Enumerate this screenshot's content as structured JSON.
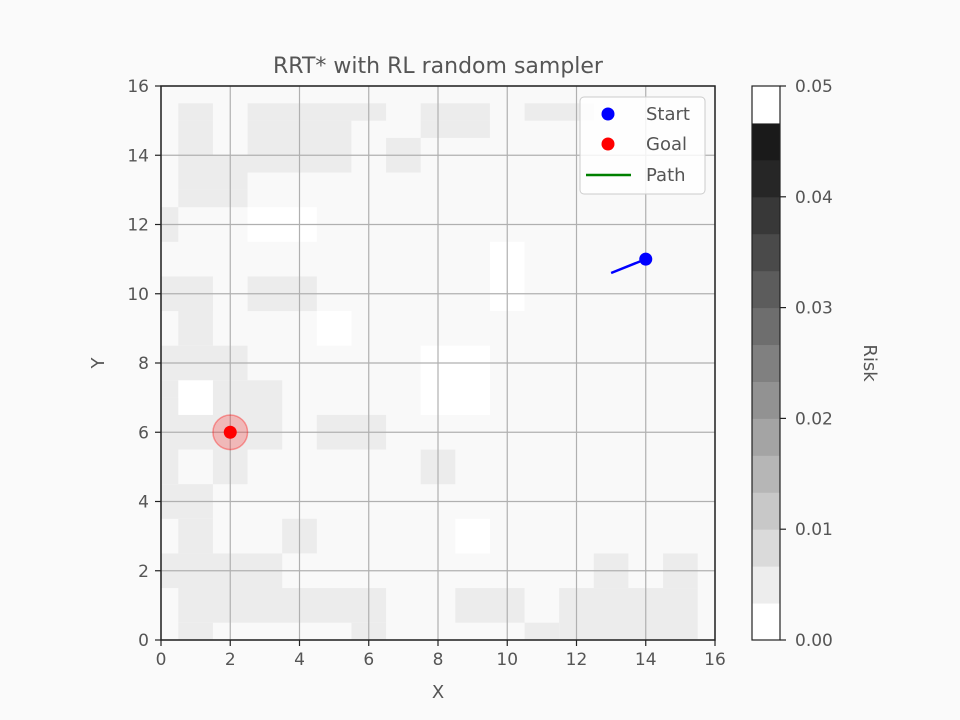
{
  "chart_data": {
    "type": "heatmap",
    "title": "RRT* with RL random sampler",
    "xlabel": "X",
    "ylabel": "Y",
    "xlim": [
      0,
      16
    ],
    "ylim": [
      0,
      16
    ],
    "xticks": [
      0,
      2,
      4,
      6,
      8,
      10,
      12,
      14,
      16
    ],
    "yticks": [
      0,
      2,
      4,
      6,
      8,
      10,
      12,
      14,
      16
    ],
    "xtick_labels": [
      "0",
      "2",
      "4",
      "6",
      "8",
      "10",
      "12",
      "14",
      "16"
    ],
    "ytick_labels": [
      "0",
      "2",
      "4",
      "6",
      "8",
      "10",
      "12",
      "14",
      "16"
    ],
    "grid": true,
    "grid_resolution": 0.5,
    "risk_map": {
      "description": "Risk value per 1x1 cell (cell lower-left corner) at low risk levels",
      "light_cells": [
        [
          0,
          0
        ],
        [
          1,
          0
        ],
        [
          2,
          0
        ],
        [
          3,
          0
        ],
        [
          4,
          0
        ],
        [
          8,
          0
        ],
        [
          9,
          0
        ],
        [
          10,
          0
        ],
        [
          11,
          0
        ],
        [
          12,
          0
        ],
        [
          13,
          0
        ],
        [
          14,
          0
        ],
        [
          15,
          0
        ]
      ]
    },
    "heat_cells": [
      {
        "x0": 0.5,
        "x1": 1.5,
        "y0": 15,
        "y1": 15.5
      },
      {
        "x0": 2.5,
        "x1": 6.5,
        "y0": 15,
        "y1": 15.5
      },
      {
        "x0": 7.5,
        "x1": 9.5,
        "y0": 15,
        "y1": 15.5
      },
      {
        "x0": 10.5,
        "x1": 12.5,
        "y0": 15,
        "y1": 15.5
      },
      {
        "x0": 0.5,
        "x1": 1.5,
        "y0": 14,
        "y1": 15
      },
      {
        "x0": 2.5,
        "x1": 5.5,
        "y0": 14,
        "y1": 15
      },
      {
        "x0": 7.5,
        "x1": 9.5,
        "y0": 14.5,
        "y1": 15
      },
      {
        "x0": 6.5,
        "x1": 7.5,
        "y0": 13.5,
        "y1": 14.5
      },
      {
        "x0": 0.5,
        "x1": 2.5,
        "y0": 13,
        "y1": 14
      },
      {
        "x0": 2.5,
        "x1": 5.5,
        "y0": 13.5,
        "y1": 14
      },
      {
        "x0": 0.5,
        "x1": 2.5,
        "y0": 12.5,
        "y1": 13
      },
      {
        "x0": 0.5,
        "x1": 0.5,
        "y0": 12,
        "y1": 12.5
      },
      {
        "x0": 0,
        "x1": 0.5,
        "y0": 11.5,
        "y1": 12.5
      },
      {
        "x0": 0,
        "x1": 1.5,
        "y0": 10,
        "y1": 10.5
      },
      {
        "x0": 2.5,
        "x1": 4.5,
        "y0": 9.5,
        "y1": 10.5
      },
      {
        "x0": 0.5,
        "x1": 1.5,
        "y0": 8.5,
        "y1": 10
      },
      {
        "x0": 0,
        "x1": 1.5,
        "y0": 9.5,
        "y1": 10
      },
      {
        "x0": 0,
        "x1": 2.5,
        "y0": 7.5,
        "y1": 8.5
      },
      {
        "x0": 0,
        "x1": 0.5,
        "y0": 7,
        "y1": 7.5
      },
      {
        "x0": 1.5,
        "x1": 3.5,
        "y0": 5.5,
        "y1": 7.5
      },
      {
        "x0": 0,
        "x1": 1.5,
        "y0": 5.5,
        "y1": 7
      },
      {
        "x0": 4.5,
        "x1": 6.5,
        "y0": 5.5,
        "y1": 6.5
      },
      {
        "x0": 1.5,
        "x1": 2.5,
        "y0": 4.5,
        "y1": 5.5
      },
      {
        "x0": 0,
        "x1": 0.5,
        "y0": 4.5,
        "y1": 5.5
      },
      {
        "x0": 7.5,
        "x1": 8.5,
        "y0": 4.5,
        "y1": 5.5
      },
      {
        "x0": 0,
        "x1": 1.5,
        "y0": 3.5,
        "y1": 4.5
      },
      {
        "x0": 0.5,
        "x1": 1.5,
        "y0": 2.5,
        "y1": 3.5
      },
      {
        "x0": 3.5,
        "x1": 4.5,
        "y0": 2.5,
        "y1": 3.5
      },
      {
        "x0": 0,
        "x1": 3.5,
        "y0": 1.5,
        "y1": 2.5
      },
      {
        "x0": 0.5,
        "x1": 6.5,
        "y0": 0.5,
        "y1": 1.5
      },
      {
        "x0": 0.5,
        "x1": 1.5,
        "y0": 0,
        "y1": 0.5
      },
      {
        "x0": 5.5,
        "x1": 6.5,
        "y0": 0,
        "y1": 0.5
      },
      {
        "x0": 8.5,
        "x1": 10.5,
        "y0": 0.5,
        "y1": 1.5
      },
      {
        "x0": 10.5,
        "x1": 11.5,
        "y0": 0,
        "y1": 0.5
      },
      {
        "x0": 11.5,
        "x1": 15.5,
        "y0": 0,
        "y1": 1.5
      },
      {
        "x0": 12.5,
        "x1": 13.5,
        "y0": 1.5,
        "y1": 2.5
      },
      {
        "x0": 14.5,
        "x1": 15.5,
        "y0": 1.5,
        "y1": 2.5
      }
    ],
    "white_cells": [
      {
        "x0": 2.5,
        "x1": 4.5,
        "y0": 11.5,
        "y1": 12.5
      },
      {
        "x0": 4.5,
        "x1": 5.5,
        "y0": 8.5,
        "y1": 9.5
      },
      {
        "x0": 7.5,
        "x1": 9.5,
        "y0": 6.5,
        "y1": 8.5
      },
      {
        "x0": 9.5,
        "x1": 10.5,
        "y0": 9.5,
        "y1": 11.5
      },
      {
        "x0": 8.5,
        "x1": 9.5,
        "y0": 2.5,
        "y1": 3.5
      },
      {
        "x0": 0.5,
        "x1": 1.5,
        "y0": 6.5,
        "y1": 7.5
      }
    ],
    "series": [
      {
        "name": "Start",
        "type": "scatter",
        "color": "#0000ff",
        "x": [
          14
        ],
        "y": [
          11
        ]
      },
      {
        "name": "Goal",
        "type": "scatter",
        "color": "#ff0000",
        "x": [
          2
        ],
        "y": [
          6
        ]
      },
      {
        "name": "Path",
        "type": "line",
        "color": "#008000",
        "x": [],
        "y": []
      }
    ],
    "extra_lines": [
      {
        "color": "#0000ff",
        "x": [
          14,
          13.0
        ],
        "y": [
          11,
          10.6
        ]
      }
    ],
    "goal_region": {
      "x": 2,
      "y": 6,
      "radius": 0.5,
      "color": "#ff0000"
    },
    "legend": {
      "placement": "top-right",
      "entries": [
        "Start",
        "Goal",
        "Path"
      ]
    },
    "colorbar": {
      "label": "Risk",
      "range": [
        0,
        0.05
      ],
      "ticks": [
        0.0,
        0.01,
        0.02,
        0.03,
        0.04,
        0.05
      ],
      "tick_labels": [
        "0.00",
        "0.01",
        "0.02",
        "0.03",
        "0.04",
        "0.05"
      ],
      "colors": [
        "#ffffff",
        "#ededed",
        "#dadada",
        "#c8c8c8",
        "#b6b6b6",
        "#a4a4a4",
        "#929292",
        "#808080",
        "#6e6e6e",
        "#5c5c5c",
        "#4a4a4a",
        "#383838",
        "#262626",
        "#1a1a1a",
        "#ffffff"
      ]
    }
  }
}
